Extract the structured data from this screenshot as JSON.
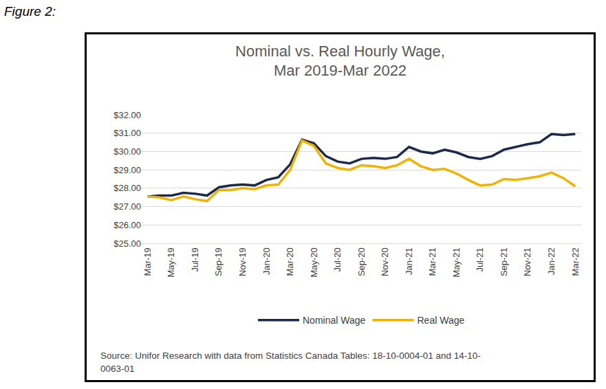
{
  "figure_label": "Figure 2:",
  "source": "Source: Unifor Research with data from Statistics Canada Tables: 18-10-0004-01 and 14-10-0063-01",
  "chart_data": {
    "type": "line",
    "title": [
      "Nominal vs. Real Hourly Wage,",
      "Mar 2019-Mar 2022"
    ],
    "categories": [
      "Mar-19",
      null,
      "May-19",
      null,
      "Jul-19",
      null,
      "Sep-19",
      null,
      "Nov-19",
      null,
      "Jan-20",
      null,
      "Mar-20",
      null,
      "May-20",
      null,
      "Jul-20",
      null,
      "Sep-20",
      null,
      "Nov-20",
      null,
      "Jan-21",
      null,
      "Mar-21",
      null,
      "May-21",
      null,
      "Jul-21",
      null,
      "Sep-21",
      null,
      "Nov-21",
      null,
      "Jan-22",
      null,
      "Mar-22"
    ],
    "series": [
      {
        "name": "Nominal Wage",
        "color": "#1b2a4a",
        "line_style": "solid",
        "values": [
          27.55,
          27.6,
          27.6,
          27.75,
          27.7,
          27.6,
          28.05,
          28.15,
          28.2,
          28.15,
          28.45,
          28.6,
          29.3,
          30.65,
          30.45,
          29.75,
          29.45,
          29.35,
          29.6,
          29.65,
          29.6,
          29.7,
          30.25,
          30.0,
          29.9,
          30.1,
          29.95,
          29.7,
          29.6,
          29.75,
          30.1,
          30.25,
          30.4,
          30.5,
          30.95,
          30.9,
          30.95
        ]
      },
      {
        "name": "Real Wage",
        "color": "#f2b200",
        "line_style": "solid",
        "values": [
          27.55,
          27.5,
          27.35,
          27.55,
          27.4,
          27.3,
          27.9,
          27.9,
          28.0,
          27.95,
          28.15,
          28.2,
          29.0,
          30.6,
          30.3,
          29.35,
          29.1,
          29.0,
          29.25,
          29.2,
          29.1,
          29.25,
          29.6,
          29.2,
          29.0,
          29.05,
          28.8,
          28.45,
          28.15,
          28.2,
          28.5,
          28.45,
          28.55,
          28.65,
          28.85,
          28.55,
          28.1
        ]
      }
    ],
    "ylim": [
      25,
      32
    ],
    "yticks": [
      {
        "value": 25,
        "label": "$25.00"
      },
      {
        "value": 26,
        "label": "$26.00"
      },
      {
        "value": 27,
        "label": "$27.00"
      },
      {
        "value": 28,
        "label": "$28.00"
      },
      {
        "value": 29,
        "label": "$29.00"
      },
      {
        "value": 30,
        "label": "$30.00"
      },
      {
        "value": 31,
        "label": "$31.00"
      },
      {
        "value": 32,
        "label": "$32.00"
      }
    ],
    "grid": true,
    "legend": "bottom"
  }
}
